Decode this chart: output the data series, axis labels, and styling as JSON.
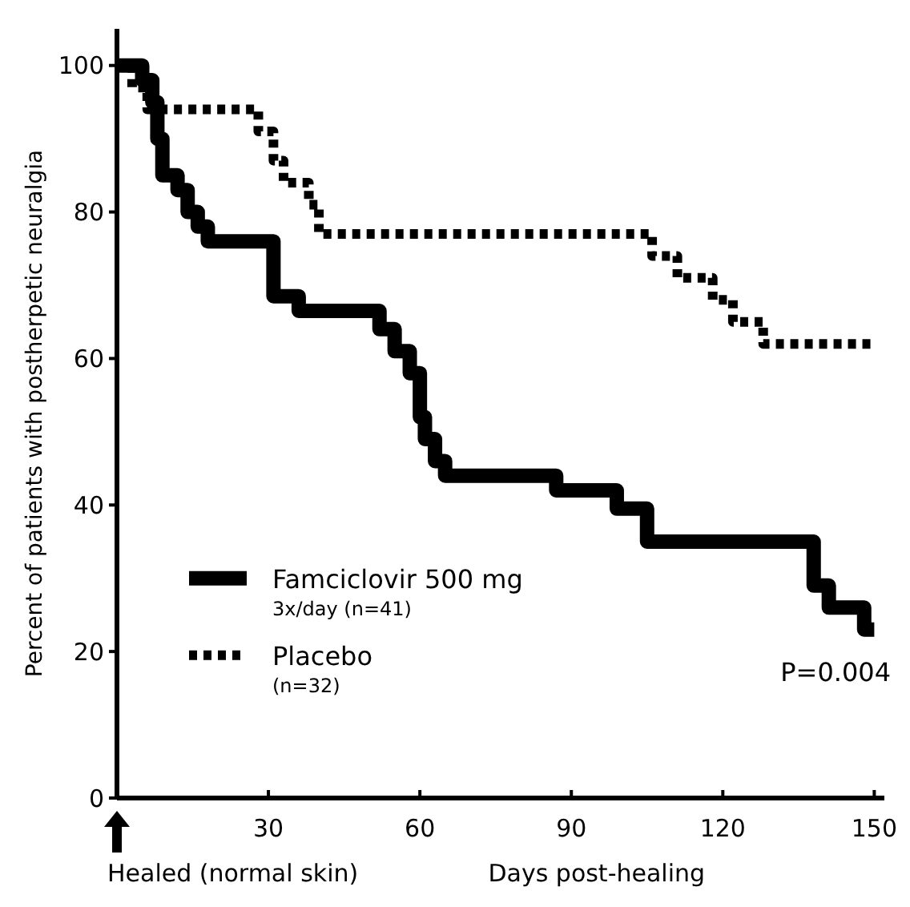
{
  "chart_data": {
    "type": "step",
    "ylabel": "Percent of patients with postherpetic neuralgia",
    "xlabel": "Days post-healing",
    "xlim": [
      0,
      152
    ],
    "ylim": [
      0,
      105
    ],
    "xticks": [
      {
        "value": 0,
        "label": null
      },
      30,
      60,
      90,
      120,
      150
    ],
    "yticks": [
      0,
      20,
      40,
      60,
      80,
      100
    ],
    "grid": false,
    "legend": "bottom left",
    "series": [
      {
        "name": "Famciclovir 500 mg\n3x/day (n=41)",
        "color": "#000000",
        "line_style": "solid",
        "x": [
          0,
          5,
          7,
          8,
          9,
          12,
          14,
          16,
          18,
          31,
          36,
          52,
          55,
          58,
          60,
          61,
          63,
          65,
          87,
          99,
          105,
          138,
          141,
          148,
          150
        ],
        "values": [
          100,
          98,
          95,
          90,
          85,
          83,
          80,
          78,
          76,
          68.5,
          66.5,
          64,
          61,
          58,
          52,
          49,
          46,
          44,
          42,
          39.5,
          35,
          29,
          26,
          23,
          23
        ]
      },
      {
        "name": "Placebo\n(n=32)",
        "color": "#000000",
        "line_style": "dotted",
        "x": [
          0,
          3,
          6,
          28,
          31,
          33,
          38,
          40,
          44,
          106,
          111,
          118,
          122,
          128,
          150
        ],
        "values": [
          100,
          97,
          94,
          91,
          87,
          84,
          81,
          77,
          77,
          74,
          71,
          68,
          65,
          62,
          62
        ]
      }
    ],
    "annotations": [
      "P=0.004",
      "Healed (normal skin)"
    ]
  }
}
